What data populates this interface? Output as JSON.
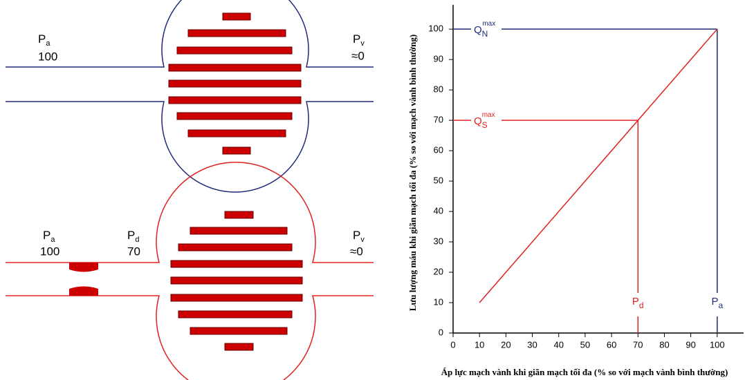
{
  "diagram": {
    "normal": {
      "inlet": {
        "symbol": "P",
        "sub": "a",
        "value": "100"
      },
      "outlet": {
        "symbol": "P",
        "sub": "v",
        "value": "≈0"
      }
    },
    "stenosis": {
      "inlet": {
        "symbol": "P",
        "sub": "a",
        "value": "100"
      },
      "distal": {
        "symbol": "P",
        "sub": "d",
        "value": "70"
      },
      "outlet": {
        "symbol": "P",
        "sub": "v",
        "value": "≈0"
      }
    }
  },
  "chart_data": {
    "type": "line",
    "xlabel": "Áp lực mạch vành khi giãn mạch tối đa (% so với mạch vành bình thường)",
    "ylabel": "Lưu lượng máu khi giãn mạch tối đa (% so với mạch vành bình thường)",
    "series": [
      {
        "color": "#e02020",
        "x": [
          10,
          100
        ],
        "values": [
          10,
          100
        ]
      }
    ],
    "reference_lines": [
      {
        "color": "#1f2a7a",
        "x": 100,
        "y": 100,
        "y_label": {
          "text": "Q",
          "sub": "N",
          "sup": "max"
        },
        "x_label": {
          "text": "P",
          "sub": "a"
        }
      },
      {
        "color": "#e02020",
        "x": 70,
        "y": 70,
        "y_label": {
          "text": "Q",
          "sub": "S",
          "sup": "max"
        },
        "x_label": {
          "text": "P",
          "sub": "d"
        }
      }
    ],
    "xlim": [
      0,
      110
    ],
    "ylim": [
      0,
      108
    ],
    "xticks": [
      0,
      10,
      20,
      30,
      40,
      50,
      60,
      70,
      80,
      90,
      100
    ],
    "yticks": [
      0,
      10,
      20,
      30,
      40,
      50,
      60,
      70,
      80,
      90,
      100
    ]
  }
}
